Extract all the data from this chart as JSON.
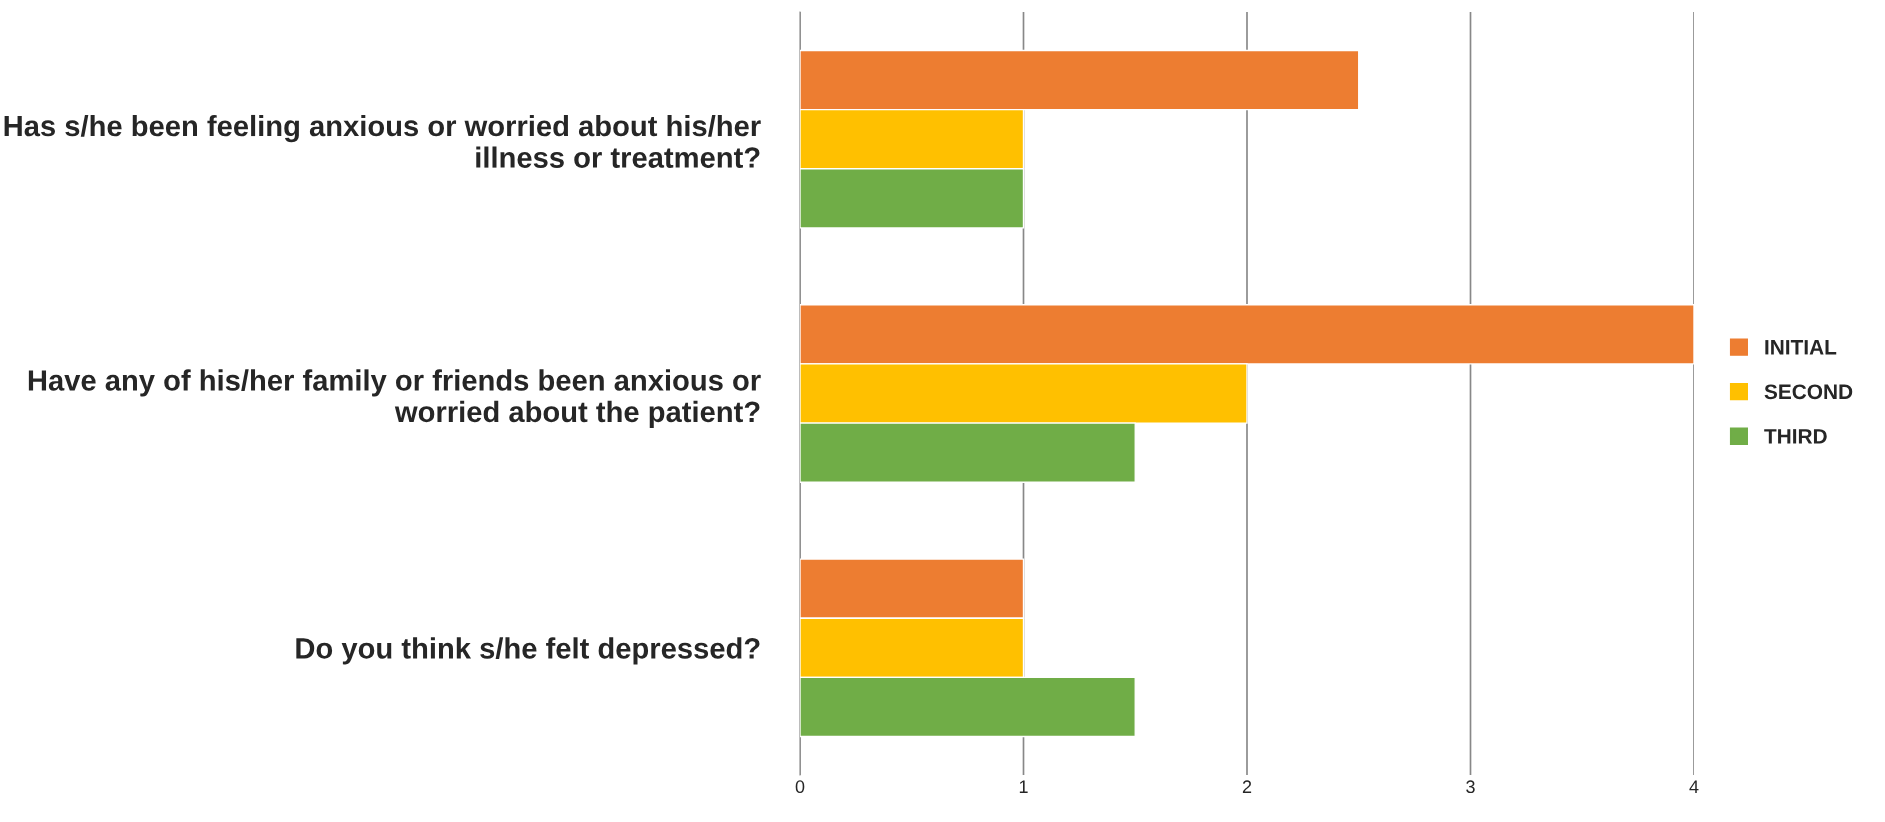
{
  "chart_data": {
    "type": "bar",
    "orientation": "horizontal",
    "categories": [
      "Has s/he been feeling anxious or worried about his/her illness or treatment?",
      "Have any of his/her family or friends been anxious or worried about the patient?",
      "Do you think s/he felt depressed?"
    ],
    "series": [
      {
        "name": "INITIAL",
        "color": "#ed7d31",
        "values": [
          2.5,
          4,
          1
        ]
      },
      {
        "name": "SECOND",
        "color": "#ffc000",
        "values": [
          1,
          2,
          1
        ]
      },
      {
        "name": "THIRD",
        "color": "#70ad47",
        "values": [
          1,
          1.5,
          1.5
        ]
      }
    ],
    "xlim": [
      0,
      4
    ],
    "xticks": [
      0,
      1,
      2,
      3,
      4
    ],
    "grid": "x",
    "legend": "right"
  }
}
